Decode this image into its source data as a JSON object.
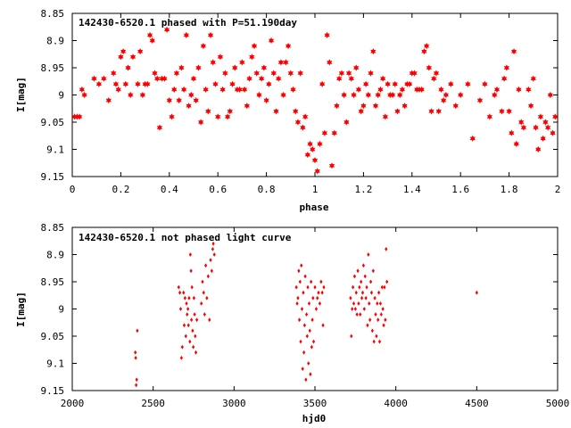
{
  "colors": {
    "marker": "#ff0000",
    "axis": "#000000",
    "background": "#ffffff"
  },
  "chart_data": [
    {
      "type": "scatter",
      "title": "142430-6520.1 phased with P=51.190day",
      "xlabel": "phase",
      "ylabel": "I[mag]",
      "xlim": [
        0,
        2
      ],
      "ylim": [
        9.15,
        8.85
      ],
      "y_inverted": true,
      "xticks": [
        "0",
        "0.2",
        "0.4",
        "0.6",
        "0.8",
        "1",
        "1.2",
        "1.4",
        "1.6",
        "1.8",
        "2"
      ],
      "yticks": [
        "8.85",
        "8.9",
        "8.95",
        "9",
        "9.05",
        "9.1",
        "9.15"
      ],
      "grid": false,
      "legend": "none",
      "marker": "filled-star",
      "points": [
        [
          0.01,
          9.04
        ],
        [
          0.02,
          9.04
        ],
        [
          0.03,
          9.04
        ],
        [
          0.04,
          8.99
        ],
        [
          0.05,
          9.0
        ],
        [
          0.09,
          8.97
        ],
        [
          0.11,
          8.98
        ],
        [
          0.13,
          8.97
        ],
        [
          0.15,
          9.01
        ],
        [
          0.17,
          8.96
        ],
        [
          0.18,
          8.98
        ],
        [
          0.19,
          8.99
        ],
        [
          0.2,
          8.93
        ],
        [
          0.21,
          8.92
        ],
        [
          0.22,
          8.98
        ],
        [
          0.23,
          8.95
        ],
        [
          0.24,
          9.0
        ],
        [
          0.25,
          8.93
        ],
        [
          0.27,
          8.98
        ],
        [
          0.28,
          8.92
        ],
        [
          0.29,
          9.0
        ],
        [
          0.3,
          8.98
        ],
        [
          0.31,
          8.98
        ],
        [
          0.32,
          8.89
        ],
        [
          0.33,
          8.9
        ],
        [
          0.34,
          8.96
        ],
        [
          0.35,
          8.97
        ],
        [
          0.36,
          9.06
        ],
        [
          0.37,
          8.97
        ],
        [
          0.38,
          8.97
        ],
        [
          0.39,
          8.88
        ],
        [
          0.4,
          9.01
        ],
        [
          0.41,
          9.04
        ],
        [
          0.42,
          8.99
        ],
        [
          0.43,
          8.96
        ],
        [
          0.44,
          9.01
        ],
        [
          0.45,
          8.95
        ],
        [
          0.46,
          8.99
        ],
        [
          0.47,
          8.89
        ],
        [
          0.48,
          9.02
        ],
        [
          0.49,
          9.0
        ],
        [
          0.5,
          8.97
        ],
        [
          0.51,
          9.01
        ],
        [
          0.52,
          8.95
        ],
        [
          0.53,
          9.05
        ],
        [
          0.54,
          8.91
        ],
        [
          0.55,
          8.99
        ],
        [
          0.56,
          9.03
        ],
        [
          0.57,
          8.89
        ],
        [
          0.58,
          8.94
        ],
        [
          0.59,
          8.98
        ],
        [
          0.6,
          9.04
        ],
        [
          0.61,
          8.93
        ],
        [
          0.62,
          8.99
        ],
        [
          0.63,
          8.96
        ],
        [
          0.64,
          9.04
        ],
        [
          0.65,
          9.03
        ],
        [
          0.66,
          8.98
        ],
        [
          0.67,
          8.95
        ],
        [
          0.68,
          8.99
        ],
        [
          0.69,
          8.99
        ],
        [
          0.7,
          8.94
        ],
        [
          0.71,
          8.99
        ],
        [
          0.72,
          9.02
        ],
        [
          0.73,
          8.97
        ],
        [
          0.74,
          8.93
        ],
        [
          0.75,
          8.91
        ],
        [
          0.76,
          8.96
        ],
        [
          0.77,
          9.0
        ],
        [
          0.78,
          8.97
        ],
        [
          0.79,
          8.95
        ],
        [
          0.8,
          9.01
        ],
        [
          0.81,
          8.98
        ],
        [
          0.82,
          8.9
        ],
        [
          0.83,
          8.96
        ],
        [
          0.84,
          9.03
        ],
        [
          0.85,
          8.97
        ],
        [
          0.86,
          8.94
        ],
        [
          0.87,
          9.0
        ],
        [
          0.88,
          8.94
        ],
        [
          0.89,
          8.91
        ],
        [
          0.9,
          8.96
        ],
        [
          0.91,
          8.99
        ],
        [
          0.92,
          9.03
        ],
        [
          0.93,
          9.05
        ],
        [
          0.94,
          8.96
        ],
        [
          0.95,
          9.06
        ],
        [
          0.96,
          9.04
        ],
        [
          0.97,
          9.11
        ],
        [
          0.98,
          9.09
        ],
        [
          0.99,
          9.1
        ],
        [
          1.0,
          9.12
        ],
        [
          1.01,
          9.14
        ],
        [
          1.02,
          9.09
        ],
        [
          1.03,
          8.98
        ],
        [
          1.04,
          9.07
        ],
        [
          1.05,
          8.89
        ],
        [
          1.06,
          8.94
        ],
        [
          1.07,
          9.13
        ],
        [
          1.08,
          9.07
        ],
        [
          1.09,
          9.02
        ],
        [
          1.1,
          8.97
        ],
        [
          1.11,
          8.96
        ],
        [
          1.12,
          9.0
        ],
        [
          1.13,
          9.05
        ],
        [
          1.14,
          8.96
        ],
        [
          1.15,
          8.97
        ],
        [
          1.16,
          9.0
        ],
        [
          1.17,
          8.95
        ],
        [
          1.18,
          8.99
        ],
        [
          1.19,
          9.03
        ],
        [
          1.2,
          9.02
        ],
        [
          1.21,
          8.98
        ],
        [
          1.22,
          9.0
        ],
        [
          1.23,
          8.96
        ],
        [
          1.24,
          8.92
        ],
        [
          1.25,
          9.02
        ],
        [
          1.26,
          9.0
        ],
        [
          1.27,
          8.99
        ],
        [
          1.28,
          8.97
        ],
        [
          1.29,
          9.04
        ],
        [
          1.3,
          8.98
        ],
        [
          1.31,
          9.0
        ],
        [
          1.32,
          9.0
        ],
        [
          1.33,
          8.98
        ],
        [
          1.34,
          9.03
        ],
        [
          1.35,
          9.0
        ],
        [
          1.36,
          8.99
        ],
        [
          1.37,
          9.02
        ],
        [
          1.38,
          8.98
        ],
        [
          1.39,
          8.98
        ],
        [
          1.4,
          8.96
        ],
        [
          1.41,
          8.96
        ],
        [
          1.42,
          8.99
        ],
        [
          1.43,
          8.99
        ],
        [
          1.44,
          8.99
        ],
        [
          1.45,
          8.92
        ],
        [
          1.46,
          8.91
        ],
        [
          1.47,
          8.95
        ],
        [
          1.48,
          9.03
        ],
        [
          1.49,
          8.97
        ],
        [
          1.5,
          8.96
        ],
        [
          1.51,
          9.03
        ],
        [
          1.52,
          8.99
        ],
        [
          1.53,
          9.01
        ],
        [
          1.54,
          9.0
        ],
        [
          1.56,
          8.98
        ],
        [
          1.58,
          9.02
        ],
        [
          1.6,
          9.0
        ],
        [
          1.63,
          8.98
        ],
        [
          1.65,
          9.08
        ],
        [
          1.68,
          9.01
        ],
        [
          1.7,
          8.98
        ],
        [
          1.72,
          9.04
        ],
        [
          1.74,
          9.0
        ],
        [
          1.75,
          8.99
        ],
        [
          1.77,
          9.03
        ],
        [
          1.78,
          8.97
        ],
        [
          1.79,
          8.95
        ],
        [
          1.8,
          9.03
        ],
        [
          1.81,
          9.07
        ],
        [
          1.82,
          8.92
        ],
        [
          1.83,
          9.09
        ],
        [
          1.84,
          8.99
        ],
        [
          1.85,
          9.05
        ],
        [
          1.86,
          9.06
        ],
        [
          1.88,
          8.99
        ],
        [
          1.89,
          9.02
        ],
        [
          1.9,
          8.97
        ],
        [
          1.91,
          9.06
        ],
        [
          1.92,
          9.1
        ],
        [
          1.93,
          9.04
        ],
        [
          1.94,
          9.08
        ],
        [
          1.95,
          9.05
        ],
        [
          1.96,
          9.06
        ],
        [
          1.97,
          9.0
        ],
        [
          1.98,
          9.07
        ],
        [
          1.99,
          9.04
        ]
      ]
    },
    {
      "type": "scatter",
      "title": "142430-6520.1 not phased light curve",
      "xlabel": "hjd0",
      "ylabel": "I[mag]",
      "xlim": [
        2000,
        5000
      ],
      "ylim": [
        9.15,
        8.85
      ],
      "y_inverted": true,
      "xticks": [
        "2000",
        "2500",
        "3000",
        "3500",
        "4000",
        "4500",
        "5000"
      ],
      "yticks": [
        "8.85",
        "8.9",
        "8.95",
        "9",
        "9.05",
        "9.1",
        "9.15"
      ],
      "grid": false,
      "legend": "none",
      "marker": "small-dot",
      "points": [
        [
          2390,
          9.08
        ],
        [
          2392,
          9.09
        ],
        [
          2395,
          9.14
        ],
        [
          2398,
          9.13
        ],
        [
          2402,
          9.04
        ],
        [
          2658,
          8.96
        ],
        [
          2665,
          8.97
        ],
        [
          2670,
          9.0
        ],
        [
          2675,
          9.09
        ],
        [
          2680,
          9.07
        ],
        [
          2688,
          8.97
        ],
        [
          2692,
          9.03
        ],
        [
          2697,
          8.98
        ],
        [
          2702,
          9.05
        ],
        [
          2706,
          8.99
        ],
        [
          2710,
          9.01
        ],
        [
          2715,
          9.0
        ],
        [
          2718,
          9.03
        ],
        [
          2722,
          8.98
        ],
        [
          2727,
          9.06
        ],
        [
          2730,
          8.9
        ],
        [
          2734,
          8.93
        ],
        [
          2737,
          9.02
        ],
        [
          2740,
          8.96
        ],
        [
          2744,
          9.04
        ],
        [
          2748,
          9.07
        ],
        [
          2752,
          8.98
        ],
        [
          2756,
          9.01
        ],
        [
          2760,
          9.05
        ],
        [
          2764,
          9.08
        ],
        [
          2770,
          9.02
        ],
        [
          2798,
          8.99
        ],
        [
          2805,
          8.95
        ],
        [
          2812,
          8.97
        ],
        [
          2818,
          9.01
        ],
        [
          2825,
          8.92
        ],
        [
          2832,
          8.98
        ],
        [
          2840,
          8.94
        ],
        [
          2848,
          9.02
        ],
        [
          2855,
          8.91
        ],
        [
          2862,
          8.93
        ],
        [
          2868,
          8.89
        ],
        [
          2872,
          8.88
        ],
        [
          2878,
          8.9
        ],
        [
          3385,
          8.96
        ],
        [
          3390,
          8.99
        ],
        [
          3395,
          8.98
        ],
        [
          3400,
          8.93
        ],
        [
          3404,
          9.02
        ],
        [
          3408,
          8.95
        ],
        [
          3412,
          9.06
        ],
        [
          3416,
          8.92
        ],
        [
          3420,
          9.0
        ],
        [
          3424,
          9.11
        ],
        [
          3428,
          8.97
        ],
        [
          3432,
          9.08
        ],
        [
          3436,
          9.03
        ],
        [
          3440,
          8.94
        ],
        [
          3444,
          9.13
        ],
        [
          3448,
          9.01
        ],
        [
          3452,
          9.05
        ],
        [
          3456,
          8.96
        ],
        [
          3460,
          9.1
        ],
        [
          3464,
          8.99
        ],
        [
          3468,
          9.04
        ],
        [
          3472,
          9.12
        ],
        [
          3476,
          8.95
        ],
        [
          3480,
          9.07
        ],
        [
          3484,
          9.02
        ],
        [
          3488,
          8.98
        ],
        [
          3492,
          9.06
        ],
        [
          3500,
          8.96
        ],
        [
          3508,
          9.0
        ],
        [
          3515,
          8.98
        ],
        [
          3522,
          8.97
        ],
        [
          3530,
          8.99
        ],
        [
          3538,
          8.95
        ],
        [
          3545,
          8.97
        ],
        [
          3550,
          9.03
        ],
        [
          3555,
          8.96
        ],
        [
          3720,
          8.98
        ],
        [
          3725,
          9.05
        ],
        [
          3730,
          9.0
        ],
        [
          3735,
          8.96
        ],
        [
          3740,
          8.99
        ],
        [
          3745,
          8.94
        ],
        [
          3750,
          9.0
        ],
        [
          3755,
          8.97
        ],
        [
          3760,
          9.01
        ],
        [
          3765,
          8.93
        ],
        [
          3770,
          8.99
        ],
        [
          3775,
          8.96
        ],
        [
          3780,
          9.01
        ],
        [
          3785,
          8.95
        ],
        [
          3790,
          8.98
        ],
        [
          3795,
          8.97
        ],
        [
          3800,
          8.92
        ],
        [
          3805,
          9.0
        ],
        [
          3810,
          8.94
        ],
        [
          3815,
          8.98
        ],
        [
          3820,
          8.96
        ],
        [
          3825,
          9.03
        ],
        [
          3830,
          8.9
        ],
        [
          3835,
          8.99
        ],
        [
          3840,
          9.02
        ],
        [
          3845,
          8.95
        ],
        [
          3850,
          8.97
        ],
        [
          3855,
          9.04
        ],
        [
          3860,
          8.93
        ],
        [
          3865,
          9.06
        ],
        [
          3870,
          8.98
        ],
        [
          3875,
          9.01
        ],
        [
          3880,
          9.05
        ],
        [
          3885,
          8.99
        ],
        [
          3890,
          9.02
        ],
        [
          3895,
          8.97
        ],
        [
          3900,
          9.06
        ],
        [
          3905,
          8.99
        ],
        [
          3910,
          9.01
        ],
        [
          3915,
          8.96
        ],
        [
          3920,
          9.0
        ],
        [
          3925,
          9.03
        ],
        [
          3930,
          8.96
        ],
        [
          3935,
          9.02
        ],
        [
          3940,
          8.89
        ],
        [
          3945,
          8.95
        ],
        [
          4500,
          8.97
        ]
      ]
    }
  ]
}
